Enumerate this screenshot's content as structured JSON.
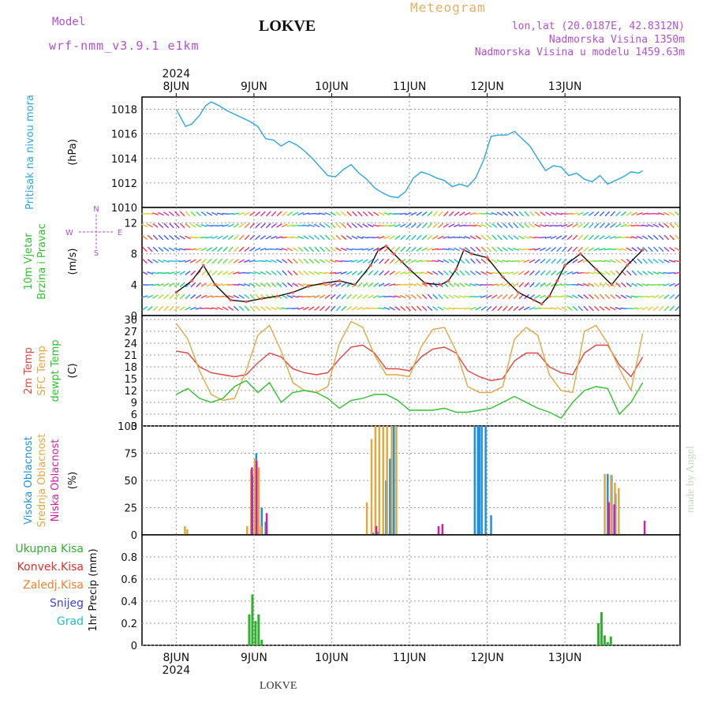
{
  "header": {
    "model_label": "Model",
    "model_version": "wrf-nmm_v3.9.1  e1km",
    "title": "LOKVE",
    "meteogram_label": "Meteogram",
    "lonlat": "lon,lat (20.0187E, 42.8312N)",
    "altitude": "Nadmorska Visina 1350m",
    "model_altitude": "Nadmorska Visina u modelu 1459.63m"
  },
  "footer": {
    "name": "LOKVE",
    "watermark": "made by Angel"
  },
  "colors": {
    "pressure": "#2aa7e0",
    "temp2m": "#e04545",
    "sfc_temp": "#e0a840",
    "dewpoint": "#30c030",
    "high_cloud": "#1f90e0",
    "mid_cloud": "#e0a840",
    "low_cloud": "#d020a0",
    "total_precip": "#30b030",
    "conv_precip": "#e03030",
    "frozen_precip": "#f08030",
    "snow": "#4040e0",
    "graupel": "#20c0c0",
    "wind_speed_line": "#111111",
    "wind_marker": "#ff5050"
  },
  "chart_data": [
    {
      "type": "line",
      "name": "pressure",
      "ylabel": "(hPa)",
      "side_label": "Pritisak na nivou mora",
      "ylim": [
        1010,
        1019
      ],
      "yticks": [
        "1010",
        "1012",
        "1014",
        "1016",
        "1018"
      ],
      "series": [
        {
          "x": [
            0,
            0.06,
            0.12,
            0.2,
            0.3,
            0.38,
            0.45,
            0.55,
            0.65,
            0.75,
            0.85,
            0.95,
            1.05,
            1.15,
            1.25,
            1.35,
            1.45,
            1.55,
            1.65,
            1.75,
            1.85,
            1.95,
            2.05,
            2.15,
            2.25,
            2.35,
            2.45,
            2.55,
            2.65,
            2.75,
            2.85,
            2.95,
            3.05,
            3.15,
            3.25,
            3.35,
            3.45,
            3.55,
            3.65,
            3.75,
            3.85,
            3.95,
            4.05,
            4.15,
            4.25,
            4.35,
            4.45,
            4.55,
            4.65,
            4.75,
            4.85,
            4.95,
            5.05,
            5.15,
            5.25,
            5.35,
            5.45,
            5.55,
            5.65,
            5.75,
            5.85,
            5.95,
            6.0
          ],
          "y": [
            1018.0,
            1017.3,
            1016.6,
            1016.8,
            1017.5,
            1018.3,
            1018.6,
            1018.3,
            1017.9,
            1017.6,
            1017.3,
            1017.0,
            1016.6,
            1015.6,
            1015.5,
            1015.0,
            1015.4,
            1015.1,
            1014.6,
            1014.0,
            1013.3,
            1012.6,
            1012.5,
            1013.1,
            1013.5,
            1012.8,
            1012.3,
            1011.6,
            1011.2,
            1010.9,
            1010.8,
            1011.3,
            1012.4,
            1012.9,
            1012.7,
            1012.4,
            1012.2,
            1011.7,
            1011.9,
            1011.7,
            1012.4,
            1013.8,
            1015.8,
            1015.9,
            1015.9,
            1016.2,
            1015.6,
            1015.0,
            1014.0,
            1013.0,
            1013.4,
            1013.3,
            1012.6,
            1012.8,
            1012.3,
            1012.1,
            1012.6,
            1011.9,
            1012.2,
            1012.5,
            1012.9,
            1012.8,
            1013.0
          ]
        }
      ]
    },
    {
      "type": "line",
      "name": "wind",
      "ylabel": "(m/s)",
      "side_label": [
        "10m Vjetar",
        "Brzina i Pravac"
      ],
      "compass": {
        "n": "N",
        "e": "E",
        "s": "S",
        "w": "W"
      },
      "ylim": [
        0,
        14
      ],
      "yticks": [
        "0",
        "4",
        "8",
        "12"
      ],
      "series": [
        {
          "name": "speed",
          "x": [
            0,
            0.2,
            0.35,
            0.5,
            0.7,
            0.9,
            1.1,
            1.3,
            1.5,
            1.7,
            1.9,
            2.1,
            2.3,
            2.5,
            2.6,
            2.7,
            2.8,
            2.9,
            3.0,
            3.2,
            3.4,
            3.5,
            3.6,
            3.7,
            3.8,
            4.0,
            4.2,
            4.4,
            4.6,
            4.7,
            4.8,
            4.9,
            5.0,
            5.2,
            5.4,
            5.6,
            5.8,
            6.0
          ],
          "y": [
            3.0,
            4.5,
            6.5,
            4.0,
            2.0,
            1.8,
            2.2,
            2.5,
            3.0,
            3.8,
            4.2,
            4.5,
            4.0,
            6.5,
            8.5,
            9.0,
            8.0,
            7.0,
            6.0,
            4.2,
            4.0,
            4.5,
            6.0,
            8.5,
            8.0,
            7.5,
            5.0,
            3.0,
            2.0,
            1.5,
            2.5,
            4.5,
            6.5,
            8.0,
            6.0,
            4.0,
            6.5,
            8.5
          ]
        }
      ]
    },
    {
      "type": "line",
      "name": "temperature",
      "ylabel": "(C)",
      "side_label": [
        "2m Temp",
        "SFC Temp",
        "dewpt Temp"
      ],
      "ylim": [
        3,
        31
      ],
      "yticks": [
        "3",
        "6",
        "9",
        "12",
        "15",
        "18",
        "21",
        "24",
        "27",
        "30"
      ],
      "series": [
        {
          "name": "temp2m",
          "x": [
            0,
            0.15,
            0.3,
            0.45,
            0.6,
            0.75,
            0.9,
            1.05,
            1.2,
            1.35,
            1.5,
            1.65,
            1.8,
            1.95,
            2.1,
            2.25,
            2.4,
            2.55,
            2.7,
            2.85,
            3.0,
            3.15,
            3.3,
            3.45,
            3.6,
            3.75,
            3.9,
            4.05,
            4.2,
            4.35,
            4.5,
            4.65,
            4.8,
            4.95,
            5.1,
            5.25,
            5.4,
            5.55,
            5.7,
            5.85,
            6.0
          ],
          "y": [
            22,
            21.5,
            18,
            16.5,
            16,
            15.5,
            16,
            19,
            21.5,
            20.5,
            17.5,
            16.5,
            16,
            16.5,
            20,
            23,
            23.5,
            21.5,
            17.5,
            17.5,
            17,
            20.5,
            22.5,
            23,
            21.5,
            17,
            15.5,
            14.5,
            15,
            19.5,
            21.5,
            21.5,
            18,
            16.5,
            16,
            21.5,
            23.5,
            23.5,
            18.5,
            15.5,
            20.5
          ]
        },
        {
          "name": "sfc_temp",
          "x": [
            0,
            0.15,
            0.3,
            0.45,
            0.6,
            0.75,
            0.9,
            1.05,
            1.2,
            1.35,
            1.5,
            1.65,
            1.8,
            1.95,
            2.1,
            2.25,
            2.4,
            2.55,
            2.7,
            2.85,
            3.0,
            3.15,
            3.3,
            3.45,
            3.6,
            3.75,
            3.9,
            4.05,
            4.2,
            4.35,
            4.5,
            4.65,
            4.8,
            4.95,
            5.1,
            5.25,
            5.4,
            5.55,
            5.7,
            5.85,
            6.0
          ],
          "y": [
            29,
            25,
            17,
            11,
            9.5,
            10,
            17,
            26,
            28.5,
            22,
            14,
            12,
            11.5,
            13,
            24,
            29.5,
            28,
            21,
            16,
            16,
            15.5,
            23,
            27.5,
            28,
            22,
            13,
            11.5,
            11.5,
            13,
            25,
            28,
            26,
            16,
            12,
            11.5,
            27,
            28.5,
            24,
            17.5,
            12,
            26.5
          ]
        },
        {
          "name": "dewpoint",
          "x": [
            0,
            0.15,
            0.3,
            0.45,
            0.6,
            0.75,
            0.9,
            1.05,
            1.2,
            1.35,
            1.5,
            1.65,
            1.8,
            1.95,
            2.1,
            2.25,
            2.4,
            2.55,
            2.7,
            2.85,
            3.0,
            3.15,
            3.3,
            3.45,
            3.6,
            3.75,
            3.9,
            4.05,
            4.2,
            4.35,
            4.5,
            4.65,
            4.8,
            4.95,
            5.1,
            5.25,
            5.4,
            5.55,
            5.7,
            5.85,
            6.0
          ],
          "y": [
            11,
            12.5,
            10,
            9,
            10,
            13,
            14.5,
            11.5,
            14,
            9,
            11.5,
            12,
            11.5,
            10,
            7.5,
            9.5,
            10,
            11,
            11,
            9.5,
            7,
            7,
            7,
            7.5,
            6.5,
            6.5,
            7,
            7.5,
            9,
            10.5,
            9,
            7.5,
            6.5,
            5,
            9,
            12,
            13,
            12.5,
            6,
            9,
            14
          ]
        }
      ]
    },
    {
      "type": "bar",
      "name": "clouds",
      "ylabel": "(%)",
      "side_label": [
        "Visoka Oblacnost",
        "Srednja Oblacnost",
        "Niska Oblacnost"
      ],
      "ylim": [
        0,
        100
      ],
      "yticks": [
        "0",
        "25",
        "50",
        "75",
        "100"
      ],
      "series": [
        {
          "name": "high",
          "x": [
            0.98,
            1.03,
            1.1,
            1.15,
            2.53,
            2.6,
            2.7,
            2.75,
            2.8,
            3.84,
            3.88,
            3.9,
            3.93,
            3.98,
            4.05,
            5.55,
            5.6,
            5.65
          ],
          "y": [
            55,
            75,
            25,
            12,
            2,
            3,
            50,
            70,
            100,
            100,
            100,
            100,
            100,
            100,
            18,
            56,
            55,
            38
          ]
        },
        {
          "name": "mid",
          "x": [
            0.1,
            0.13,
            0.9,
            0.95,
            1.0,
            1.05,
            1.08,
            2.44,
            2.5,
            2.55,
            2.6,
            2.65,
            2.7,
            2.76,
            2.82,
            5.5,
            5.58,
            5.63,
            5.68
          ],
          "y": [
            8,
            5,
            8,
            60,
            70,
            62,
            8,
            30,
            88,
            100,
            100,
            100,
            100,
            100,
            100,
            56,
            55,
            48,
            43
          ]
        },
        {
          "name": "low",
          "x": [
            0.95,
            1.01,
            1.14,
            2.55,
            3.35,
            3.4,
            5.54,
            5.61,
            6.0
          ],
          "y": [
            62,
            68,
            20,
            8,
            8,
            10,
            30,
            28,
            13
          ]
        }
      ]
    },
    {
      "type": "bar",
      "name": "precip",
      "ylabel": "1hr Precip (mm)",
      "legend": [
        "Ukupna Kisa",
        "Konvek.Kisa",
        "Zaledj.Kisa",
        "Snijeg",
        "Grad"
      ],
      "ylim": [
        0,
        1.0
      ],
      "yticks": [
        "0",
        "0.2",
        "0.4",
        "0.6",
        "0.8"
      ],
      "series": [
        {
          "name": "total",
          "x": [
            0.94,
            0.98,
            1.02,
            1.06,
            1.1,
            5.43,
            5.47,
            5.51,
            5.55,
            5.59
          ],
          "y": [
            0.28,
            0.46,
            0.22,
            0.28,
            0.05,
            0.2,
            0.3,
            0.09,
            0.03,
            0.08
          ]
        }
      ]
    }
  ],
  "time_axis": {
    "top_year": "2024",
    "bottom_year": "2024",
    "day_labels": [
      "8JUN",
      "9JUN",
      "10JUN",
      "11JUN",
      "12JUN",
      "13JUN"
    ]
  }
}
